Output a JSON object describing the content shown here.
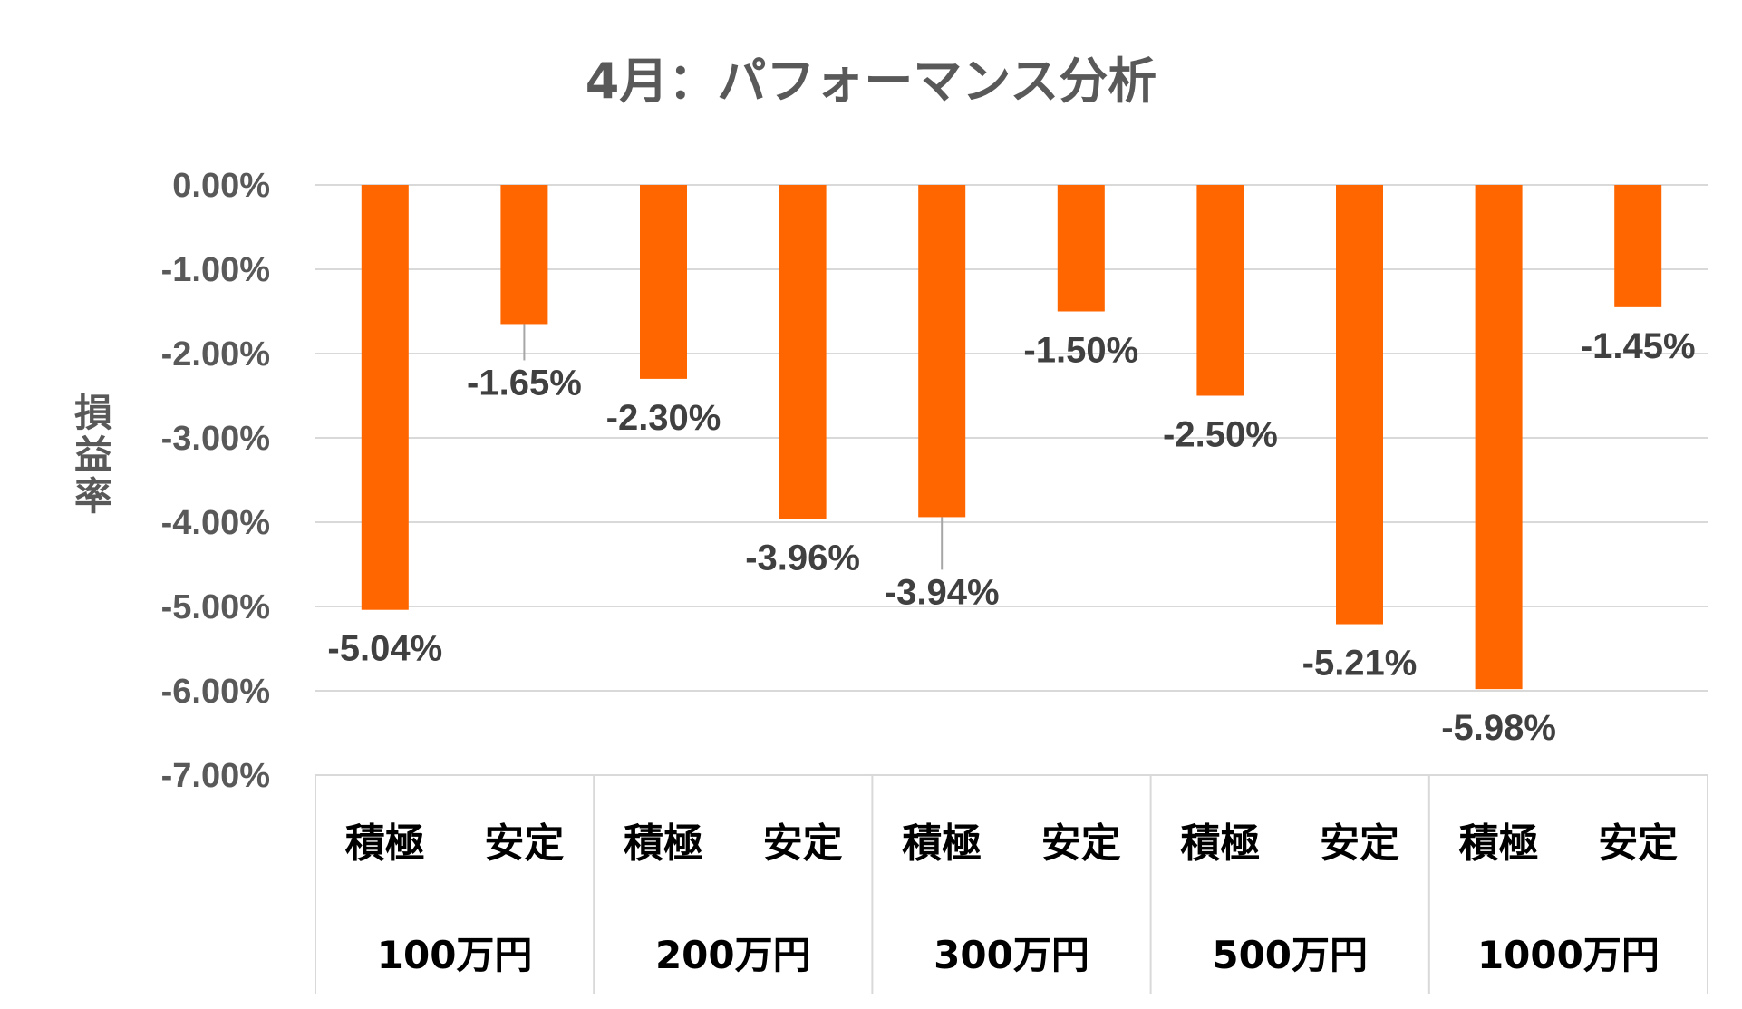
{
  "chart_data": {
    "type": "bar",
    "title": "4月：パフォーマンス分析",
    "ylabel": "損益率",
    "xlabel": "",
    "ylim": [
      -7,
      0
    ],
    "y_ticks": [
      "0.00%",
      "-1.00%",
      "-2.00%",
      "-3.00%",
      "-4.00%",
      "-5.00%",
      "-6.00%",
      "-7.00%"
    ],
    "grid": true,
    "colors": {
      "bar": "#ff6600"
    },
    "groups": [
      {
        "label": "100万円",
        "categories": [
          "積極",
          "安定"
        ],
        "values": [
          -5.04,
          -1.65
        ],
        "labels": [
          "-5.04%",
          "-1.65%"
        ]
      },
      {
        "label": "200万円",
        "categories": [
          "積極",
          "安定"
        ],
        "values": [
          -2.3,
          -3.96
        ],
        "labels": [
          "-2.30%",
          "-3.96%"
        ]
      },
      {
        "label": "300万円",
        "categories": [
          "積極",
          "安定"
        ],
        "values": [
          -3.94,
          -1.5
        ],
        "labels": [
          "-3.94%",
          "-1.50%"
        ]
      },
      {
        "label": "500万円",
        "categories": [
          "積極",
          "安定"
        ],
        "values": [
          -2.5,
          -5.21
        ],
        "labels": [
          "-2.50%",
          "-5.21%"
        ]
      },
      {
        "label": "1000万円",
        "categories": [
          "積極",
          "安定"
        ],
        "values": [
          -5.98,
          -1.45
        ],
        "labels": [
          "-5.98%",
          "-1.45%"
        ]
      }
    ]
  }
}
